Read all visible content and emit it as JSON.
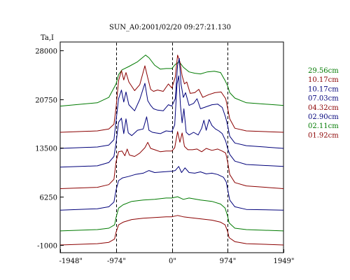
{
  "chart_data": {
    "type": "line",
    "title": "SUN_A0:2001/02/20 09:27:21.130",
    "ylabel": "Ta,I",
    "xlabel": "",
    "xlim": [
      -1949,
      1949
    ],
    "ylim": [
      -1000,
      28000
    ],
    "x_ticks": [
      {
        "value": -1948,
        "label": "-1948\""
      },
      {
        "value": -974,
        "label": "-974\""
      },
      {
        "value": 0,
        "label": "0\""
      },
      {
        "value": 974,
        "label": "974\""
      },
      {
        "value": 1949,
        "label": "1949\""
      }
    ],
    "y_ticks": [
      {
        "value": 28000,
        "label": "28000"
      },
      {
        "value": 20750,
        "label": "20750"
      },
      {
        "value": 13500,
        "label": "13500"
      },
      {
        "value": 6250,
        "label": "6250"
      },
      {
        "value": -1000,
        "label": "-1000"
      }
    ],
    "reference_lines_x": [
      -974,
      0,
      974
    ],
    "grid": false,
    "legend_position": "right",
    "series": [
      {
        "name": "29.56cm",
        "color": "#007a00",
        "x": [
          -1949,
          -1300,
          -1100,
          -974,
          -930,
          -870,
          -750,
          -600,
          -460,
          -400,
          -300,
          -200,
          -100,
          0,
          60,
          130,
          200,
          300,
          400,
          500,
          620,
          740,
          850,
          930,
          974,
          1010,
          1100,
          1300,
          1949
        ],
        "y": [
          19700,
          20200,
          21000,
          23000,
          24400,
          25100,
          25600,
          26300,
          27300,
          26900,
          25800,
          25200,
          25300,
          25300,
          25900,
          26300,
          25500,
          24800,
          24600,
          24500,
          24800,
          24900,
          24700,
          23500,
          22700,
          21700,
          20900,
          20200,
          19800
        ]
      },
      {
        "name": "10.17cm",
        "color": "#8b0000",
        "x": [
          -1949,
          -1300,
          -1100,
          -1010,
          -974,
          -930,
          -880,
          -840,
          -800,
          -750,
          -650,
          -560,
          -470,
          -420,
          -370,
          -320,
          -250,
          -150,
          -60,
          0,
          60,
          100,
          140,
          180,
          220,
          260,
          320,
          400,
          470,
          540,
          640,
          750,
          860,
          940,
          974,
          1010,
          1100,
          1300,
          1949
        ],
        "y": [
          15800,
          16000,
          16300,
          17000,
          19500,
          23500,
          25000,
          23600,
          24700,
          23300,
          22000,
          22900,
          25700,
          23900,
          22200,
          21900,
          22100,
          21900,
          23000,
          22400,
          24000,
          27300,
          26300,
          24200,
          23000,
          23300,
          21600,
          21700,
          22200,
          21000,
          21400,
          21700,
          21800,
          20800,
          19400,
          17800,
          16400,
          16000,
          15800
        ]
      },
      {
        "name": "10.17cm",
        "color": "#00007a",
        "x": [
          -1949,
          -1300,
          -1100,
          -1010,
          -974,
          -930,
          -880,
          -840,
          -800,
          -750,
          -650,
          -560,
          -470,
          -420,
          -370,
          -320,
          -250,
          -150,
          -60,
          0,
          60,
          100,
          130,
          160,
          200,
          240,
          300,
          380,
          440,
          500,
          600,
          700,
          800,
          880,
          940,
          974,
          1010,
          1100,
          1300,
          1949
        ],
        "y": [
          13400,
          13600,
          13900,
          14700,
          17500,
          20800,
          22100,
          20300,
          21800,
          19900,
          19000,
          20700,
          23100,
          20500,
          19800,
          19300,
          19100,
          19000,
          19900,
          19700,
          20800,
          25800,
          26800,
          23000,
          21000,
          21700,
          19800,
          20100,
          20800,
          19300,
          19600,
          19900,
          20000,
          19500,
          18000,
          16800,
          15200,
          14200,
          13800,
          13400
        ]
      },
      {
        "name": "07.03cm",
        "color": "#00007a",
        "x": [
          -1949,
          -1300,
          -1100,
          -1010,
          -974,
          -930,
          -880,
          -840,
          -800,
          -760,
          -700,
          -600,
          -500,
          -440,
          -400,
          -340,
          -280,
          -200,
          -100,
          0,
          50,
          90,
          120,
          150,
          180,
          210,
          250,
          300,
          380,
          460,
          520,
          560,
          600,
          650,
          700,
          760,
          820,
          880,
          940,
          974,
          1010,
          1100,
          1300,
          1949
        ],
        "y": [
          10600,
          10800,
          11300,
          12200,
          14200,
          17300,
          17900,
          15600,
          17800,
          15700,
          15300,
          16100,
          16300,
          18100,
          16100,
          15800,
          15700,
          15600,
          16000,
          15900,
          16900,
          23000,
          24200,
          19800,
          17200,
          19300,
          15800,
          15400,
          15800,
          15400,
          16400,
          17600,
          16100,
          17700,
          16800,
          16300,
          16000,
          15600,
          14500,
          13400,
          12500,
          11500,
          11000,
          10700
        ]
      },
      {
        "name": "04.32cm",
        "color": "#8b0000",
        "x": [
          -1949,
          -1300,
          -1100,
          -1010,
          -974,
          -930,
          -870,
          -820,
          -780,
          -740,
          -650,
          -560,
          -470,
          -420,
          -370,
          -300,
          -200,
          -100,
          0,
          50,
          100,
          140,
          180,
          220,
          280,
          360,
          440,
          520,
          600,
          700,
          800,
          880,
          940,
          974,
          1010,
          1100,
          1300,
          1949
        ],
        "y": [
          7400,
          7600,
          8000,
          8800,
          11400,
          12900,
          13000,
          12300,
          13300,
          12400,
          12200,
          12700,
          13500,
          14300,
          13400,
          13200,
          12900,
          13000,
          13000,
          13500,
          15900,
          14300,
          15700,
          13700,
          13200,
          13200,
          13300,
          12900,
          13400,
          13100,
          13300,
          13000,
          12700,
          11400,
          9500,
          8300,
          7800,
          7400
        ]
      },
      {
        "name": "02.90cm",
        "color": "#00007a",
        "x": [
          -1949,
          -1300,
          -1100,
          -1010,
          -974,
          -930,
          -860,
          -760,
          -640,
          -500,
          -400,
          -300,
          -150,
          0,
          60,
          120,
          170,
          230,
          300,
          400,
          500,
          600,
          700,
          800,
          900,
          950,
          974,
          1010,
          1100,
          1300,
          1949
        ],
        "y": [
          4200,
          4400,
          4700,
          5400,
          7200,
          8600,
          9000,
          9200,
          9500,
          9700,
          10100,
          9800,
          9900,
          10000,
          10100,
          10700,
          9800,
          10500,
          9800,
          9700,
          9900,
          9600,
          9700,
          9500,
          9100,
          8400,
          7300,
          5700,
          4700,
          4300,
          4200
        ]
      },
      {
        "name": "02.11cm",
        "color": "#007a00",
        "x": [
          -1949,
          -1300,
          -1100,
          -1000,
          -974,
          -930,
          -850,
          -700,
          -500,
          -300,
          -100,
          0,
          100,
          200,
          300,
          500,
          700,
          850,
          930,
          974,
          1000,
          1100,
          1300,
          1949
        ],
        "y": [
          1100,
          1300,
          1500,
          2000,
          3100,
          4500,
          5000,
          5500,
          5700,
          5800,
          6000,
          6000,
          6200,
          5800,
          6000,
          5700,
          5500,
          5100,
          4500,
          3300,
          2300,
          1500,
          1300,
          1100
        ]
      },
      {
        "name": "01.92cm",
        "color": "#8b0000",
        "x": [
          -1949,
          -1300,
          -1100,
          -1000,
          -974,
          -930,
          -850,
          -700,
          -500,
          -300,
          -100,
          0,
          100,
          200,
          300,
          500,
          700,
          850,
          930,
          974,
          1000,
          1100,
          1300,
          1949
        ],
        "y": [
          -1000,
          -800,
          -600,
          -100,
          900,
          2000,
          2400,
          2800,
          3000,
          3100,
          3200,
          3200,
          3400,
          3200,
          3100,
          2900,
          2700,
          2400,
          2000,
          1000,
          100,
          -500,
          -800,
          -1000
        ]
      }
    ]
  }
}
